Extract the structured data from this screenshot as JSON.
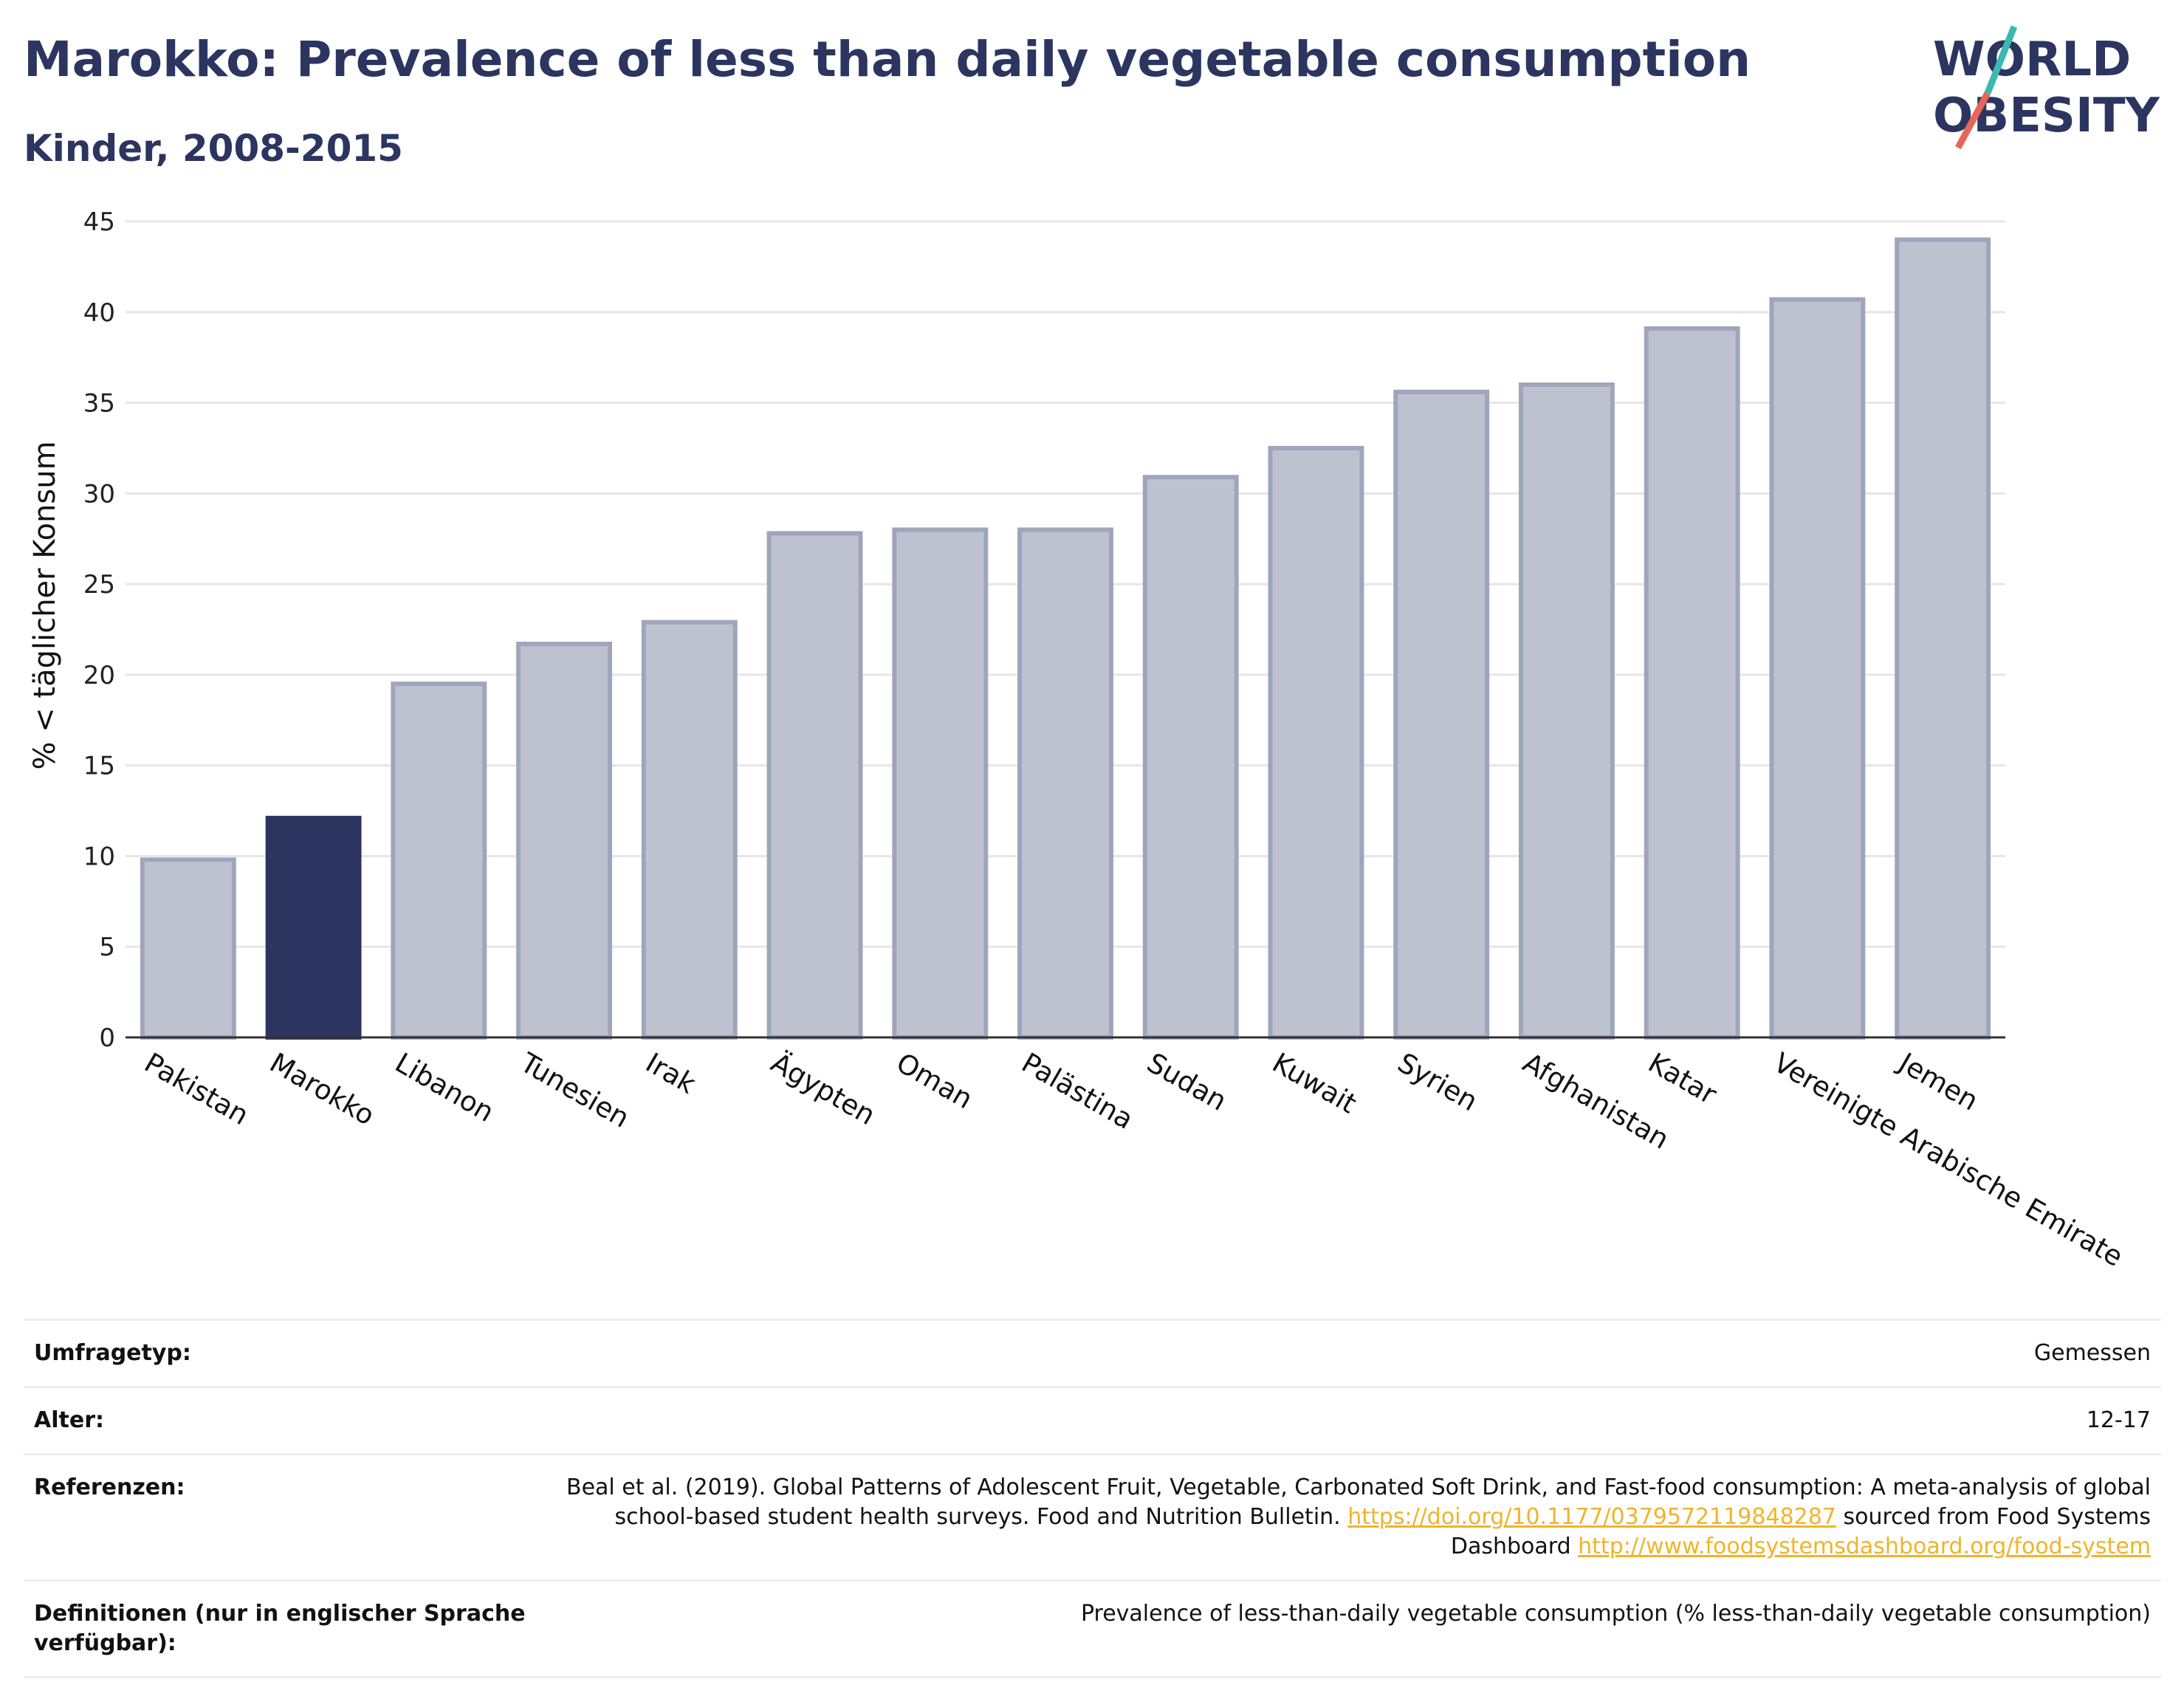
{
  "title": "Marokko: Prevalence of less than daily vegetable consumption",
  "subtitle": "Kinder, 2008-2015",
  "logo": {
    "line1": "WORLD",
    "line2": "OBESITY"
  },
  "colors": {
    "highlight": "#2b3560",
    "bar": "#bec2d0",
    "bar_border": "#9fa5bb",
    "title": "#2b3560",
    "link": "#f0b429"
  },
  "chart_data": {
    "type": "bar",
    "categories": [
      "Pakistan",
      "Marokko",
      "Libanon",
      "Tunesien",
      "Irak",
      "Ägypten",
      "Oman",
      "Palästina",
      "Sudan",
      "Kuwait",
      "Syrien",
      "Afghanistan",
      "Katar",
      "Vereinigte Arabische Emirate",
      "Jemen"
    ],
    "values": [
      9.8,
      12.1,
      19.5,
      21.7,
      22.9,
      27.8,
      28.0,
      28.0,
      30.9,
      32.5,
      35.6,
      36.0,
      39.1,
      40.7,
      44.0
    ],
    "highlight": "Marokko",
    "ylabel": "% < täglicher Konsum",
    "ylim": [
      0,
      45
    ],
    "yticks": [
      0,
      5,
      10,
      15,
      20,
      25,
      30,
      35,
      40,
      45
    ],
    "grid": true
  },
  "info": {
    "survey_label": "Umfragetyp:",
    "survey_value": "Gemessen",
    "age_label": "Alter:",
    "age_value": "12-17",
    "ref_label": "Referenzen:",
    "ref_text_1": "Beal et al. (2019). Global Patterns of Adolescent Fruit, Vegetable, Carbonated Soft Drink, and Fast-food consumption: A meta-analysis of global school-based student health surveys. Food and Nutrition Bulletin. ",
    "ref_link_1": "https://doi.org/10.1177/0379572119848287",
    "ref_text_2": " sourced from Food Systems Dashboard ",
    "ref_link_2": "http://www.foodsystemsdashboard.org/food-system",
    "def_label": "Definitionen (nur in englischer Sprache verfügbar):",
    "def_value": "Prevalence of less-than-daily vegetable consumption (% less-than-daily vegetable consumption)"
  }
}
